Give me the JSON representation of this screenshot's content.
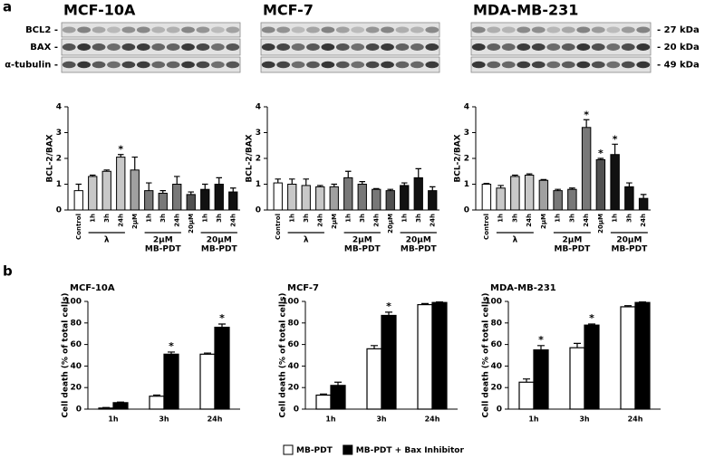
{
  "figure": {
    "panel_labels": [
      "a",
      "b"
    ],
    "blots": [
      {
        "title": "MCF-10A"
      },
      {
        "title": "MCF-7"
      },
      {
        "title": "MDA-MB-231"
      }
    ],
    "blot_rows": [
      "BCL2 -",
      "BAX -",
      "α-tubulin -"
    ],
    "blot_sizes": [
      "- 27 kDa",
      "- 20 kDa",
      "- 49 kDa"
    ]
  },
  "chart_data": [
    {
      "type": "bar",
      "ylabel": "BCL-2/BAX",
      "categories": [
        "Control",
        "1h",
        "3h",
        "24h",
        "2μM",
        "1h",
        "3h",
        "24h",
        "20μM",
        "1h",
        "3h",
        "24h"
      ],
      "values": [
        0.75,
        1.3,
        1.5,
        2.05,
        1.55,
        0.75,
        0.65,
        1.0,
        0.6,
        0.8,
        1.0,
        0.7
      ],
      "errors": [
        0.25,
        0.05,
        0.05,
        0.1,
        0.5,
        0.3,
        0.1,
        0.3,
        0.1,
        0.2,
        0.25,
        0.15
      ],
      "colors": [
        "#ffffff",
        "#c8c8c8",
        "#c8c8c8",
        "#c8c8c8",
        "#a0a0a0",
        "#787878",
        "#787878",
        "#787878",
        "#505050",
        "#111111",
        "#111111",
        "#111111"
      ],
      "ylim": [
        0,
        4
      ],
      "yticks": [
        0,
        1,
        2,
        3,
        4
      ],
      "groups": [
        {
          "lines": [
            "λ"
          ],
          "from": 1,
          "to": 3
        },
        {
          "lines": [
            "2μM",
            "MB-PDT"
          ],
          "from": 5,
          "to": 7
        },
        {
          "lines": [
            "20μM",
            "MB-PDT"
          ],
          "from": 9,
          "to": 11
        }
      ],
      "annotations": [
        {
          "index": 3,
          "text": "*"
        }
      ]
    },
    {
      "type": "bar",
      "ylabel": "BCL-2/BAX",
      "categories": [
        "Control",
        "1h",
        "3h",
        "24h",
        "2μM",
        "1h",
        "3h",
        "24h",
        "20μM",
        "1h",
        "3h",
        "24h"
      ],
      "values": [
        1.05,
        1.0,
        0.95,
        0.9,
        0.9,
        1.25,
        1.0,
        0.8,
        0.75,
        0.95,
        1.25,
        0.75
      ],
      "errors": [
        0.15,
        0.2,
        0.25,
        0.05,
        0.1,
        0.25,
        0.1,
        0.03,
        0.05,
        0.1,
        0.35,
        0.15
      ],
      "colors": [
        "#ffffff",
        "#c8c8c8",
        "#c8c8c8",
        "#c8c8c8",
        "#a0a0a0",
        "#787878",
        "#787878",
        "#787878",
        "#505050",
        "#111111",
        "#111111",
        "#111111"
      ],
      "ylim": [
        0,
        4
      ],
      "yticks": [
        0,
        1,
        2,
        3,
        4
      ],
      "groups": [
        {
          "lines": [
            "λ"
          ],
          "from": 1,
          "to": 3
        },
        {
          "lines": [
            "2μM",
            "MB-PDT"
          ],
          "from": 5,
          "to": 7
        },
        {
          "lines": [
            "20μM",
            "MB-PDT"
          ],
          "from": 9,
          "to": 11
        }
      ]
    },
    {
      "type": "bar",
      "ylabel": "BCL-2/BAX",
      "categories": [
        "Control",
        "1h",
        "3h",
        "24h",
        "2μM",
        "1h",
        "3h",
        "24h",
        "20μM",
        "1h",
        "3h",
        "24h"
      ],
      "values": [
        1.0,
        0.85,
        1.3,
        1.35,
        1.15,
        0.75,
        0.8,
        3.2,
        1.95,
        2.15,
        0.9,
        0.45
      ],
      "errors": [
        0.03,
        0.1,
        0.05,
        0.05,
        0.03,
        0.05,
        0.05,
        0.3,
        0.05,
        0.4,
        0.15,
        0.15
      ],
      "colors": [
        "#ffffff",
        "#c8c8c8",
        "#c8c8c8",
        "#c8c8c8",
        "#a0a0a0",
        "#787878",
        "#787878",
        "#787878",
        "#505050",
        "#111111",
        "#111111",
        "#111111"
      ],
      "ylim": [
        0,
        4
      ],
      "yticks": [
        0,
        1,
        2,
        3,
        4
      ],
      "groups": [
        {
          "lines": [
            "λ"
          ],
          "from": 1,
          "to": 3
        },
        {
          "lines": [
            "2μM",
            "MB-PDT"
          ],
          "from": 5,
          "to": 7
        },
        {
          "lines": [
            "20μM",
            "MB-PDT"
          ],
          "from": 9,
          "to": 11
        }
      ],
      "annotations": [
        {
          "index": 7,
          "text": "*"
        },
        {
          "index": 8,
          "text": "*"
        },
        {
          "index": 9,
          "text": "*"
        }
      ]
    },
    {
      "type": "grouped_bar",
      "title": "MCF-10A",
      "ylabel": "Cell death (% of total cells)",
      "categories": [
        "1h",
        "3h",
        "24h"
      ],
      "series": [
        {
          "name": "MB-PDT",
          "color": "#ffffff",
          "values": [
            1,
            12,
            51
          ],
          "errors": [
            0.5,
            1,
            1
          ]
        },
        {
          "name": "MB-PDT + Bax Inhibitor",
          "color": "#000000",
          "values": [
            6,
            51,
            76
          ],
          "errors": [
            0.5,
            2,
            3
          ]
        }
      ],
      "ylim": [
        0,
        100
      ],
      "yticks": [
        0,
        20,
        40,
        60,
        80,
        100
      ],
      "annotations": [
        {
          "series": 1,
          "index": 1,
          "text": "*"
        },
        {
          "series": 1,
          "index": 2,
          "text": "*"
        }
      ]
    },
    {
      "type": "grouped_bar",
      "title": "MCF-7",
      "ylabel": "Cell death (% of total cells)",
      "categories": [
        "1h",
        "3h",
        "24h"
      ],
      "series": [
        {
          "color": "#ffffff",
          "values": [
            13,
            56,
            97
          ],
          "errors": [
            1,
            3,
            1
          ]
        },
        {
          "color": "#000000",
          "values": [
            22,
            87,
            99
          ],
          "errors": [
            3,
            3,
            0.5
          ]
        }
      ],
      "ylim": [
        0,
        100
      ],
      "yticks": [
        0,
        20,
        40,
        60,
        80,
        100
      ],
      "annotations": [
        {
          "series": 1,
          "index": 1,
          "text": "*"
        }
      ]
    },
    {
      "type": "grouped_bar",
      "title": "MDA-MB-231",
      "ylabel": "Cell death (% of total cells)",
      "categories": [
        "1h",
        "3h",
        "24h"
      ],
      "series": [
        {
          "color": "#ffffff",
          "values": [
            25,
            57,
            95
          ],
          "errors": [
            3,
            4,
            1
          ]
        },
        {
          "color": "#000000",
          "values": [
            55,
            78,
            99
          ],
          "errors": [
            4,
            1,
            0.5
          ]
        }
      ],
      "ylim": [
        0,
        100
      ],
      "yticks": [
        0,
        20,
        40,
        60,
        80,
        100
      ],
      "annotations": [
        {
          "series": 1,
          "index": 0,
          "text": "*"
        },
        {
          "series": 1,
          "index": 1,
          "text": "*"
        }
      ]
    }
  ]
}
